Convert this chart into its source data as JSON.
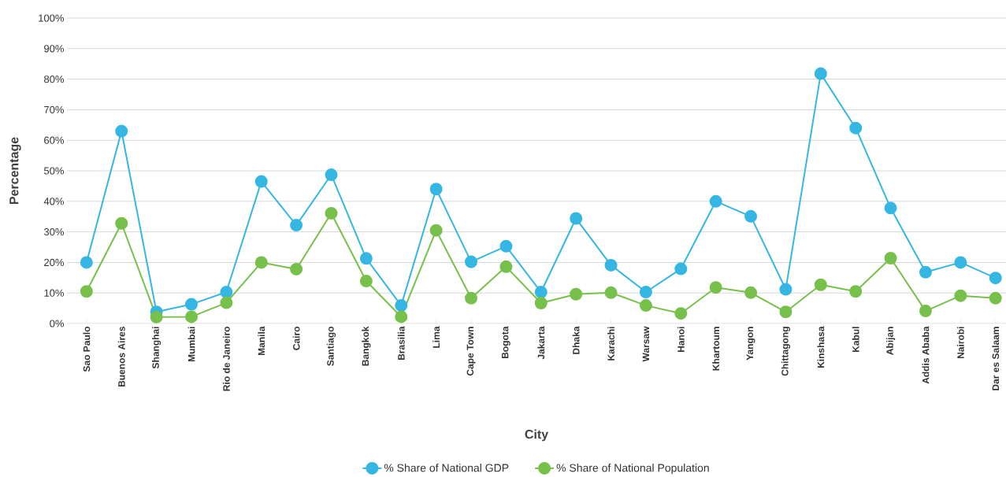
{
  "chart_data": {
    "type": "line",
    "xlabel": "City",
    "ylabel": "Percentage",
    "categories": [
      "Sao Paulo",
      "Buenos Aires",
      "Shanghai",
      "Mumbai",
      "Rio de Janeiro",
      "Manila",
      "Cairo",
      "Santiago",
      "Bangkok",
      "Brasilia",
      "Lima",
      "Cape Town",
      "Bogota",
      "Jakarta",
      "Dhaka",
      "Karachi",
      "Warsaw",
      "Hanoi",
      "Khartoum",
      "Yangon",
      "Chittagong",
      "Kinshasa",
      "Kabul",
      "Abijan",
      "Addis Ababa",
      "Nairobi",
      "Dar es Salaam"
    ],
    "series": [
      {
        "name": "% Share of National GDP",
        "color": "#35b6e3",
        "values": [
          20,
          63,
          3.8,
          6.3,
          10.3,
          46.5,
          32.2,
          48.7,
          21.3,
          5.9,
          44,
          20.2,
          25.3,
          10.3,
          34.4,
          19.1,
          10.3,
          17.9,
          40,
          35.1,
          11.2,
          81.8,
          64,
          37.8,
          16.8,
          20,
          14.9
        ]
      },
      {
        "name": "% Share of National Population",
        "color": "#77c04b",
        "values": [
          10.5,
          32.8,
          2.1,
          2.2,
          6.8,
          20,
          17.8,
          36.1,
          13.9,
          2.2,
          30.5,
          8.3,
          18.6,
          6.7,
          9.6,
          10.1,
          5.9,
          3.3,
          11.8,
          10.1,
          3.8,
          12.7,
          10.5,
          21.4,
          4.1,
          9.1,
          8.3
        ]
      }
    ],
    "ylim": [
      0,
      100
    ],
    "yticks": [
      {
        "value": 0,
        "label": "0%"
      },
      {
        "value": 10,
        "label": "10%"
      },
      {
        "value": 20,
        "label": "20%"
      },
      {
        "value": 30,
        "label": "30%"
      },
      {
        "value": 40,
        "label": "40%"
      },
      {
        "value": 50,
        "label": "50%"
      },
      {
        "value": 60,
        "label": "60%"
      },
      {
        "value": 70,
        "label": "70%"
      },
      {
        "value": 80,
        "label": "80%"
      },
      {
        "value": 90,
        "label": "90%"
      },
      {
        "value": 100,
        "label": "100%"
      }
    ],
    "grid": "y",
    "legend": "bottom",
    "marker": "circle",
    "line_style": "solid"
  }
}
